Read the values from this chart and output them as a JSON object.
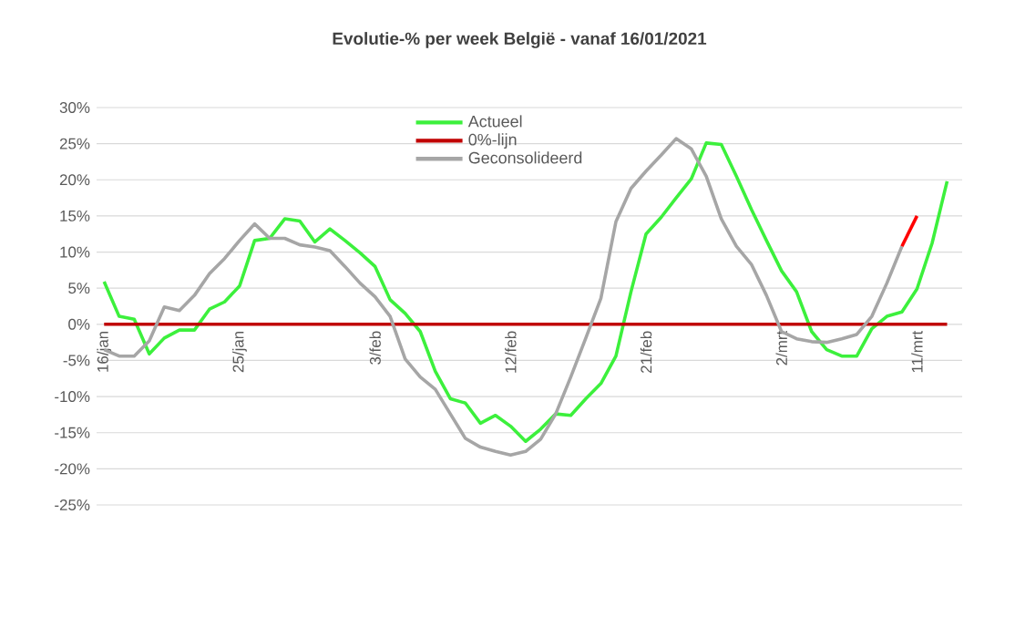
{
  "chart_data": {
    "type": "line",
    "title": "Evolutie-% per week België - vanaf 16/01/2021",
    "categories": [
      "16/jan",
      null,
      null,
      null,
      null,
      null,
      null,
      null,
      null,
      "25/jan",
      null,
      null,
      null,
      null,
      null,
      null,
      null,
      null,
      "3/feb",
      null,
      null,
      null,
      null,
      null,
      null,
      null,
      null,
      "12/feb",
      null,
      null,
      null,
      null,
      null,
      null,
      null,
      null,
      "21/feb",
      null,
      null,
      null,
      null,
      null,
      null,
      null,
      null,
      "2/mrt",
      null,
      null,
      null,
      null,
      null,
      null,
      null,
      null,
      "11/mrt",
      null,
      null
    ],
    "series": [
      {
        "name": "Actueel",
        "color": "#3cf03c",
        "values": [
          5.9,
          1.1,
          0.7,
          -4.1,
          -1.9,
          -0.8,
          -0.8,
          2.1,
          3.1,
          5.3,
          11.6,
          11.9,
          14.6,
          14.3,
          11.4,
          13.2,
          11.6,
          9.9,
          8.0,
          3.4,
          1.5,
          -1.0,
          -6.5,
          -10.3,
          -10.9,
          -13.7,
          -12.6,
          -14.1,
          -16.2,
          -14.5,
          -12.4,
          -12.6,
          -10.3,
          -8.2,
          -4.4,
          4.5,
          12.5,
          14.8,
          17.5,
          20.1,
          25.1,
          24.9,
          20.5,
          15.9,
          11.6,
          7.4,
          4.5,
          -1.0,
          -3.5,
          -4.4,
          -4.4,
          -0.6,
          1.1,
          1.7,
          4.9,
          11.2,
          19.8
        ]
      },
      {
        "name": "0%-lijn",
        "color": "#c00000",
        "values": [
          0,
          0,
          0,
          0,
          0,
          0,
          0,
          0,
          0,
          0,
          0,
          0,
          0,
          0,
          0,
          0,
          0,
          0,
          0,
          0,
          0,
          0,
          0,
          0,
          0,
          0,
          0,
          0,
          0,
          0,
          0,
          0,
          0,
          0,
          0,
          0,
          0,
          0,
          0,
          0,
          0,
          0,
          0,
          0,
          0,
          0,
          0,
          0,
          0,
          0,
          0,
          0,
          0,
          0,
          0,
          0,
          0
        ]
      },
      {
        "name": "Geconsolideerd",
        "color": "#a6a6a6",
        "values": [
          -3.5,
          -4.4,
          -4.4,
          -2.3,
          2.4,
          1.9,
          4.0,
          7.0,
          9.1,
          11.6,
          13.9,
          11.9,
          11.9,
          11.0,
          10.7,
          10.2,
          8.0,
          5.7,
          3.8,
          1.1,
          -4.8,
          -7.3,
          -9.0,
          -12.4,
          -15.8,
          -17.0,
          -17.6,
          -18.1,
          -17.6,
          -15.9,
          -12.4,
          -7.3,
          -1.9,
          3.6,
          14.2,
          18.8,
          21.2,
          23.4,
          25.7,
          24.3,
          20.5,
          14.6,
          10.8,
          8.3,
          4.0,
          -1.0,
          -2.0,
          -2.4,
          -2.5,
          -2.0,
          -1.4,
          1.1,
          5.7,
          10.8,
          null,
          null,
          null
        ]
      },
      {
        "color": "#ff0000",
        "values": [
          null,
          null,
          null,
          null,
          null,
          null,
          null,
          null,
          null,
          null,
          null,
          null,
          null,
          null,
          null,
          null,
          null,
          null,
          null,
          null,
          null,
          null,
          null,
          null,
          null,
          null,
          null,
          null,
          null,
          null,
          null,
          null,
          null,
          null,
          null,
          null,
          null,
          null,
          null,
          null,
          null,
          null,
          null,
          null,
          null,
          null,
          null,
          null,
          null,
          null,
          null,
          null,
          null,
          10.8,
          15.0,
          null,
          null
        ]
      }
    ],
    "ylim": [
      -25,
      30
    ],
    "yticks": [
      {
        "value": 30,
        "label": "30%"
      },
      {
        "value": 25,
        "label": "25%"
      },
      {
        "value": 20,
        "label": "20%"
      },
      {
        "value": 15,
        "label": "15%"
      },
      {
        "value": 10,
        "label": "10%"
      },
      {
        "value": 5,
        "label": "5%"
      },
      {
        "value": 0,
        "label": "0%"
      },
      {
        "value": -5,
        "label": "-5%"
      },
      {
        "value": -10,
        "label": "-10%"
      },
      {
        "value": -15,
        "label": "-15%"
      },
      {
        "value": -20,
        "label": "-20%"
      },
      {
        "value": -25,
        "label": "-25%"
      }
    ],
    "grid": "y",
    "legend": "top",
    "marker": "none",
    "line_style": "solid"
  }
}
